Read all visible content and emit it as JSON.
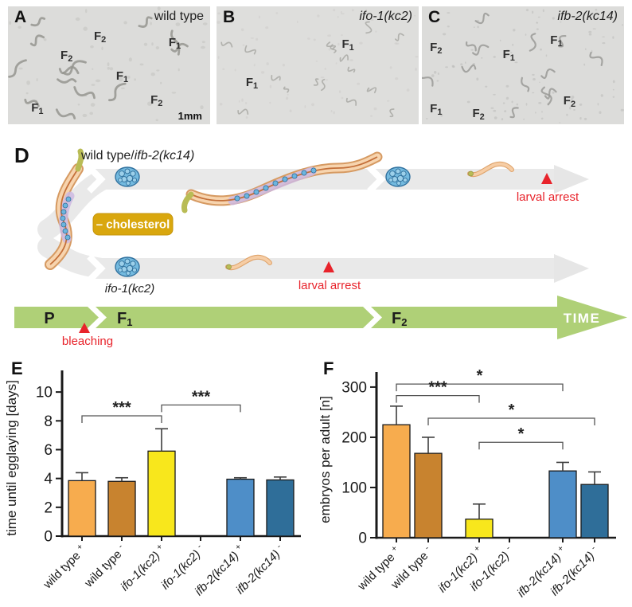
{
  "micro_panels": [
    {
      "letter": "A",
      "genotype": "wild type",
      "italic": false,
      "scalebar": "1mm",
      "markers": [
        {
          "base": "F",
          "sub": "2",
          "x": 42.5,
          "y": 20
        },
        {
          "base": "F",
          "sub": "1",
          "x": 79.5,
          "y": 26
        },
        {
          "base": "F",
          "sub": "2",
          "x": 26,
          "y": 36.5
        },
        {
          "base": "F",
          "sub": "1",
          "x": 53.5,
          "y": 54
        },
        {
          "base": "F",
          "sub": "2",
          "x": 70.5,
          "y": 74
        },
        {
          "base": "F",
          "sub": "1",
          "x": 11.5,
          "y": 81
        }
      ]
    },
    {
      "letter": "B",
      "genotype": "ifo-1(kc2)",
      "italic": true,
      "markers": [
        {
          "base": "F",
          "sub": "1",
          "x": 62,
          "y": 27
        },
        {
          "base": "F",
          "sub": "1",
          "x": 14.5,
          "y": 59.5
        }
      ]
    },
    {
      "letter": "C",
      "genotype": "ifb-2(kc14)",
      "italic": true,
      "markers": [
        {
          "base": "F",
          "sub": "2",
          "x": 4,
          "y": 29.5
        },
        {
          "base": "F",
          "sub": "1",
          "x": 63.5,
          "y": 23.5
        },
        {
          "base": "F",
          "sub": "1",
          "x": 40,
          "y": 36
        },
        {
          "base": "F",
          "sub": "2",
          "x": 70,
          "y": 75
        },
        {
          "base": "F",
          "sub": "1",
          "x": 4,
          "y": 81.5
        },
        {
          "base": "F",
          "sub": "2",
          "x": 25,
          "y": 85.5
        }
      ]
    }
  ],
  "diagram": {
    "letter": "D",
    "top_branch_label_regular": "wild type/",
    "top_branch_label_italic": "ifb-2(kc14)",
    "bottom_branch_label": "ifo-1(kc2)",
    "cholesterol_badge": "– cholesterol",
    "larval_arrest_top": "larval arrest",
    "larval_arrest_bottom": "larval arrest",
    "bleaching_label": "bleaching",
    "timeline": {
      "p": "P",
      "f1_base": "F",
      "f1_sub": "1",
      "f2_base": "F",
      "f2_sub": "2",
      "time": "TIME"
    },
    "colors": {
      "timeline_green": "#AFD077",
      "badge_gold": "#D9A70E",
      "arrest_red": "#E8232B",
      "band_gray": "#E9E9E9",
      "embryo_blue": "#74BADF"
    }
  },
  "chart_data": [
    {
      "panel": "E",
      "type": "bar",
      "ylabel": "time until egglaying [days]",
      "yticks": [
        0,
        2,
        4,
        6,
        8,
        10
      ],
      "ylim": [
        0,
        11.5
      ],
      "grid": false,
      "categories": [
        {
          "name": "wild type",
          "sup": "+",
          "italic": false
        },
        {
          "name": "wild type",
          "sup": "-",
          "italic": false
        },
        {
          "name": "ifo-1(kc2)",
          "sup": "+",
          "italic": true
        },
        {
          "name": "ifo-1(kc2)",
          "sup": "-",
          "italic": true
        },
        {
          "name": "ifb-2(kc14)",
          "sup": "+",
          "italic": true
        },
        {
          "name": "ifb-2(kc14)",
          "sup": "-",
          "italic": true
        }
      ],
      "values": [
        3.85,
        3.8,
        5.9,
        0,
        3.95,
        3.9
      ],
      "errors": [
        0.55,
        0.25,
        1.55,
        0,
        0.1,
        0.2
      ],
      "colors": [
        "#F7AC4E",
        "#C8832F",
        "#F8E71C",
        "#F8E71C",
        "#4E8EC8",
        "#2F6E99"
      ],
      "significance": [
        {
          "from": 0,
          "to": 2,
          "level": 8.35,
          "label": "***"
        },
        {
          "from": 2,
          "to": 4,
          "level": 9.1,
          "label": "***"
        }
      ]
    },
    {
      "panel": "F",
      "type": "bar",
      "ylabel": "embryos per adult [n]",
      "yticks": [
        0,
        100,
        200,
        300
      ],
      "ylim": [
        0,
        330
      ],
      "grid": false,
      "categories": [
        {
          "name": "wild type",
          "sup": "+",
          "italic": false
        },
        {
          "name": "wild type",
          "sup": "-",
          "italic": false
        },
        {
          "name": "ifo-1(kc2)",
          "sup": "+",
          "italic": true
        },
        {
          "name": "ifo-1(kc2)",
          "sup": "-",
          "italic": true
        },
        {
          "name": "ifb-2(kc14)",
          "sup": "+",
          "italic": true
        },
        {
          "name": "ifb-2(kc14)",
          "sup": "-",
          "italic": true
        }
      ],
      "values": [
        225,
        168,
        37,
        0,
        133,
        106
      ],
      "errors": [
        37,
        32,
        30,
        0,
        17,
        25
      ],
      "colors": [
        "#F7AC4E",
        "#C8832F",
        "#F8E71C",
        "#F8E71C",
        "#4E8EC8",
        "#2F6E99"
      ],
      "significance": [
        {
          "from": 0,
          "to": 4,
          "level": 306,
          "label": "*"
        },
        {
          "from": 0,
          "to": 2,
          "level": 283,
          "label": "***"
        },
        {
          "from": 1,
          "to": 5,
          "level": 238,
          "label": "*"
        },
        {
          "from": 2,
          "to": 4,
          "level": 190,
          "label": "*"
        }
      ]
    }
  ]
}
